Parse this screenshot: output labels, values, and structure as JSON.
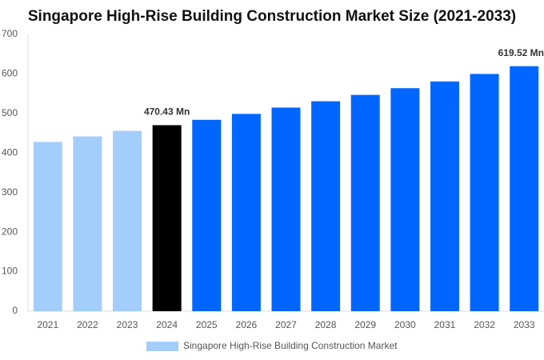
{
  "chart_data": {
    "type": "bar",
    "title": "Singapore High-Rise Building Construction Market Size (2021-2033)",
    "categories": [
      "2021",
      "2022",
      "2023",
      "2024",
      "2025",
      "2026",
      "2027",
      "2028",
      "2029",
      "2030",
      "2031",
      "2032",
      "2033"
    ],
    "series": [
      {
        "name": "Singapore High-Rise Building Construction Market",
        "color": "#a3cdfb",
        "values": [
          428,
          442,
          456,
          470.43,
          484,
          499,
          515,
          531,
          547,
          564,
          581,
          600,
          619.52
        ],
        "value_labels": [
          null,
          null,
          null,
          "470.43 Mn",
          null,
          null,
          null,
          null,
          null,
          null,
          null,
          null,
          "619.52 Mn"
        ],
        "colors": [
          "#a3cdfb",
          "#a3cdfb",
          "#a3cdfb",
          "#000000",
          "#0066ff",
          "#0066ff",
          "#0066ff",
          "#0066ff",
          "#0066ff",
          "#0066ff",
          "#0066ff",
          "#0066ff",
          "#0066ff"
        ]
      }
    ],
    "ylim": [
      0,
      700
    ],
    "yticks": [
      0,
      100,
      200,
      300,
      400,
      500,
      600,
      700
    ],
    "grid": false
  }
}
